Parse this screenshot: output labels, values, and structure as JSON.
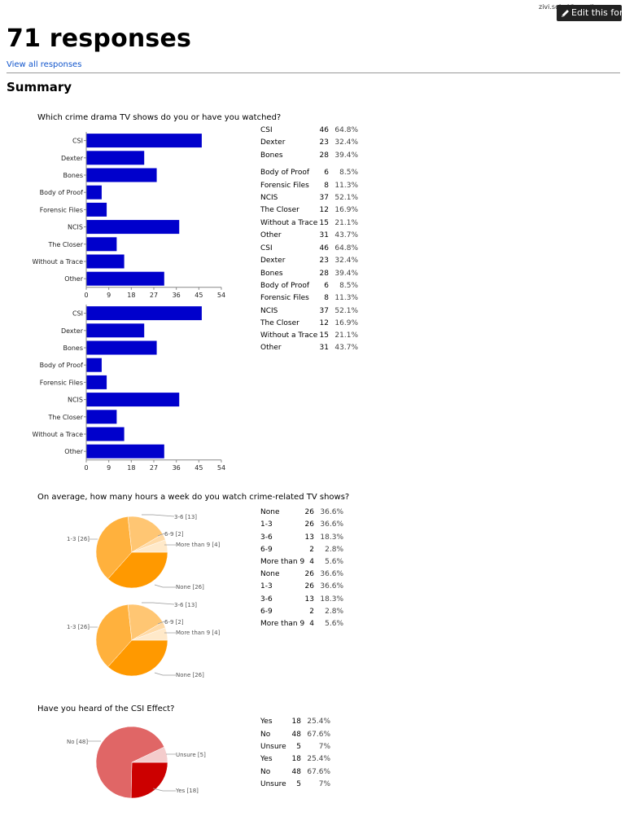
{
  "header": {
    "user_email": "zivi.sobel@gmail.com",
    "edit_label": "Edit this form"
  },
  "page": {
    "title": "71 responses",
    "view_all": "View all responses",
    "summary": "Summary"
  },
  "q1": {
    "question": "Which crime drama TV shows do you or have you watched?",
    "rows": [
      {
        "label": "CSI",
        "count": "46",
        "pct": "64.8%"
      },
      {
        "label": "Dexter",
        "count": "23",
        "pct": "32.4%"
      },
      {
        "label": "Bones",
        "count": "28",
        "pct": "39.4%"
      },
      {
        "label": "Body of Proof",
        "count": "6",
        "pct": "8.5%"
      },
      {
        "label": "Forensic Files",
        "count": "8",
        "pct": "11.3%"
      },
      {
        "label": "NCIS",
        "count": "37",
        "pct": "52.1%"
      },
      {
        "label": "The Closer",
        "count": "12",
        "pct": "16.9%"
      },
      {
        "label": "Without a Trace",
        "count": "15",
        "pct": "21.1%"
      },
      {
        "label": "Other",
        "count": "31",
        "pct": "43.7%"
      }
    ]
  },
  "q2": {
    "question": "On average, how many hours a week do you watch crime-related TV shows?",
    "rows": [
      {
        "label": "None",
        "count": "26",
        "pct": "36.6%"
      },
      {
        "label": "1-3",
        "count": "26",
        "pct": "36.6%"
      },
      {
        "label": "3-6",
        "count": "13",
        "pct": "18.3%"
      },
      {
        "label": "6-9",
        "count": "2",
        "pct": "2.8%"
      },
      {
        "label": "More than 9",
        "count": "4",
        "pct": "5.6%"
      }
    ],
    "pie_labels": {
      "a": "3-6 [13]",
      "b": "6-9 [2]",
      "c": "More than 9 [4]",
      "d": "1-3 [26]",
      "e": "None [26]"
    }
  },
  "q3": {
    "question": "Have you heard of the CSI Effect?",
    "rows": [
      {
        "label": "Yes",
        "count": "18",
        "pct": "25.4%"
      },
      {
        "label": "No",
        "count": "48",
        "pct": "67.6%"
      },
      {
        "label": "Unsure",
        "count": "5",
        "pct": "7%"
      }
    ],
    "pie_labels": {
      "a": "No [48]",
      "b": "Unsure [5]",
      "c": "Yes [18]"
    }
  },
  "chart_data": [
    {
      "type": "bar",
      "categories": [
        "CSI",
        "Dexter",
        "Bones",
        "Body of Proof",
        "Forensic Files",
        "NCIS",
        "The Closer",
        "Without a Trace",
        "Other"
      ],
      "values": [
        46,
        23,
        28,
        6,
        8,
        37,
        12,
        15,
        31
      ],
      "xticks": [
        "0",
        "9",
        "18",
        "27",
        "36",
        "45",
        "54"
      ],
      "xlim": [
        0,
        54
      ],
      "color": "#0000cc"
    },
    {
      "type": "pie",
      "categories": [
        "None",
        "1-3",
        "3-6",
        "6-9",
        "More than 9"
      ],
      "values": [
        26,
        26,
        13,
        2,
        4
      ],
      "colors": [
        "#ff9900",
        "#ffb13d",
        "#ffc673",
        "#ffdaa6",
        "#ffe9c9"
      ]
    },
    {
      "type": "pie",
      "categories": [
        "Yes",
        "No",
        "Unsure"
      ],
      "values": [
        18,
        48,
        5
      ],
      "colors": [
        "#cc0000",
        "#e06666",
        "#f4cccc"
      ]
    }
  ]
}
